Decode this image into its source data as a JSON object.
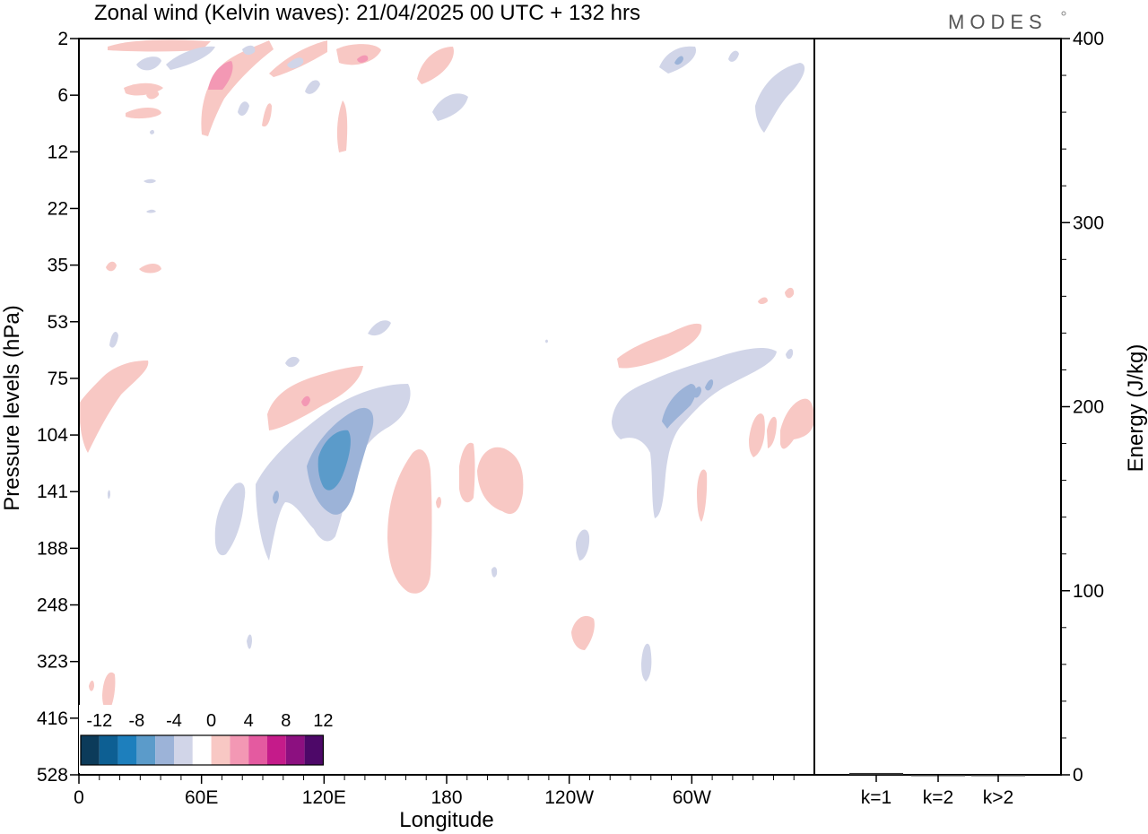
{
  "brand": "MODES",
  "chart_data": [
    {
      "type": "heatmap",
      "title": "Zonal wind (Kelvin waves):  21/04/2025  00 UTC  + 132 hrs",
      "xlabel": "Longitude",
      "ylabel": "Pressure levels (hPa)",
      "x_ticks": [
        "0",
        "60E",
        "120E",
        "180",
        "120W",
        "60W"
      ],
      "y_ticks": [
        "2",
        "6",
        "12",
        "22",
        "35",
        "53",
        "75",
        "104",
        "141",
        "188",
        "248",
        "323",
        "416",
        "528"
      ],
      "colorbar": {
        "labels": [
          "-12",
          "-8",
          "-4",
          "0",
          "4",
          "8",
          "12"
        ],
        "colors": [
          "#0c3b5a",
          "#0d5f93",
          "#1d7fbd",
          "#5b9bca",
          "#9cb3d8",
          "#d1d5e8",
          "#ffffff",
          "#f8c8c4",
          "#f398b4",
          "#e45aa0",
          "#c51b8a",
          "#8c1080",
          "#4d0868"
        ]
      }
    },
    {
      "type": "bar",
      "ylabel": "Energy (J/kg)",
      "categories": [
        "k=1",
        "k=2",
        "k>2"
      ],
      "values": [
        1,
        0,
        0
      ],
      "ylim": [
        0,
        400
      ],
      "y_ticks": [
        "0",
        "100",
        "200",
        "300",
        "400"
      ]
    }
  ]
}
